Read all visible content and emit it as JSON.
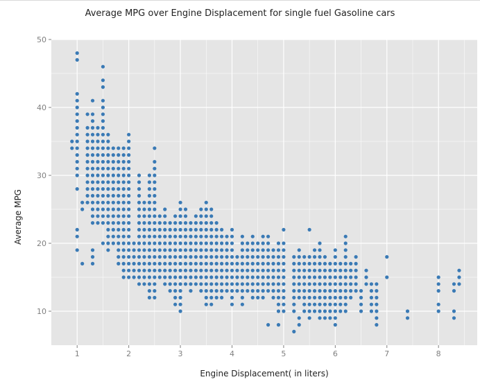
{
  "chart_data": {
    "type": "scatter",
    "title": "Average MPG over Engine Displacement for single fuel Gasoline cars",
    "xlabel": "Engine Displacement( in liters)",
    "ylabel": "Average MPG",
    "xlim": [
      0.5,
      8.75
    ],
    "ylim": [
      5,
      50
    ],
    "x_ticks": [
      1,
      2,
      3,
      4,
      5,
      6,
      7,
      8
    ],
    "y_ticks": [
      10,
      20,
      30,
      40,
      50
    ],
    "grid": true,
    "legend": "none",
    "colors": {
      "point": "#3a7ab5",
      "panel": "#e5e5e5",
      "grid": "#ffffff",
      "tick_label": "#7f7f7f"
    },
    "series": [
      {
        "points": [
          {
            "x": 0.9,
            "y": [
              34,
              35
            ]
          },
          {
            "x": 1.0,
            "y": [
              19,
              21,
              22,
              28,
              30,
              31,
              32,
              33,
              34,
              35,
              36,
              37,
              38,
              39,
              40,
              41,
              42,
              47,
              48
            ]
          },
          {
            "x": 1.1,
            "y": [
              17,
              25,
              26
            ]
          },
          {
            "x": 1.2,
            "y": [
              26,
              27,
              28,
              29,
              30,
              31,
              32,
              33,
              34,
              35,
              36,
              37,
              39
            ]
          },
          {
            "x": 1.3,
            "y": [
              17,
              18,
              19,
              23,
              24,
              25,
              26,
              27,
              28,
              29,
              30,
              31,
              32,
              33,
              34,
              35,
              36,
              37,
              38,
              39,
              41
            ]
          },
          {
            "x": 1.4,
            "y": [
              23,
              24,
              25,
              26,
              27,
              28,
              29,
              30,
              31,
              32,
              33,
              34,
              35,
              36,
              37
            ]
          },
          {
            "x": 1.5,
            "y": [
              20,
              23,
              24,
              25,
              26,
              27,
              28,
              29,
              30,
              31,
              32,
              33,
              34,
              35,
              36,
              37,
              38,
              39,
              40,
              41,
              43,
              44,
              46
            ]
          },
          {
            "x": 1.6,
            "y": [
              19,
              20,
              21,
              22,
              23,
              24,
              25,
              26,
              27,
              28,
              29,
              30,
              31,
              32,
              33,
              34,
              35,
              36
            ]
          },
          {
            "x": 1.7,
            "y": [
              20,
              21,
              22,
              23,
              24,
              25,
              26,
              27,
              28,
              29,
              30,
              31,
              32,
              33,
              34
            ]
          },
          {
            "x": 1.8,
            "y": [
              17,
              18,
              19,
              20,
              21,
              22,
              23,
              24,
              25,
              26,
              27,
              28,
              29,
              30,
              31,
              32,
              33,
              34
            ]
          },
          {
            "x": 1.9,
            "y": [
              15,
              16,
              17,
              18,
              19,
              20,
              21,
              22,
              23,
              24,
              25,
              26,
              27,
              28,
              29,
              30,
              31,
              32,
              33,
              34
            ]
          },
          {
            "x": 2.0,
            "y": [
              15,
              16,
              17,
              18,
              19,
              20,
              21,
              22,
              23,
              24,
              25,
              26,
              27,
              28,
              29,
              30,
              31,
              32,
              33,
              34,
              35,
              36
            ]
          },
          {
            "x": 2.1,
            "y": [
              15,
              16,
              17,
              18,
              19,
              20
            ]
          },
          {
            "x": 2.2,
            "y": [
              14,
              15,
              16,
              17,
              18,
              19,
              20,
              21,
              22,
              23,
              24,
              25,
              26,
              27,
              28,
              29,
              30
            ]
          },
          {
            "x": 2.3,
            "y": [
              14,
              15,
              16,
              17,
              18,
              19,
              20,
              21,
              22,
              23,
              24,
              25,
              26
            ]
          },
          {
            "x": 2.4,
            "y": [
              12,
              13,
              14,
              15,
              16,
              17,
              18,
              19,
              20,
              21,
              22,
              23,
              24,
              25,
              26,
              27,
              28,
              29,
              30
            ]
          },
          {
            "x": 2.5,
            "y": [
              12,
              13,
              14,
              15,
              16,
              17,
              18,
              19,
              20,
              21,
              22,
              23,
              24,
              25,
              26,
              27,
              28,
              29,
              30,
              31,
              32,
              34
            ]
          },
          {
            "x": 2.6,
            "y": [
              15,
              16,
              17,
              18,
              19,
              20,
              21,
              22,
              23,
              24
            ]
          },
          {
            "x": 2.7,
            "y": [
              14,
              15,
              16,
              17,
              18,
              19,
              20,
              21,
              22,
              23,
              24,
              25
            ]
          },
          {
            "x": 2.8,
            "y": [
              13,
              14,
              15,
              16,
              17,
              18,
              19,
              20,
              21,
              22,
              23
            ]
          },
          {
            "x": 2.9,
            "y": [
              11,
              12,
              13,
              14,
              15,
              16,
              17,
              18,
              19,
              20,
              21,
              22,
              23,
              24
            ]
          },
          {
            "x": 3.0,
            "y": [
              10,
              11,
              12,
              13,
              14,
              15,
              16,
              17,
              18,
              19,
              20,
              21,
              22,
              23,
              24,
              25,
              26
            ]
          },
          {
            "x": 3.1,
            "y": [
              14,
              15,
              16,
              17,
              18,
              19,
              20,
              21,
              22,
              23,
              24,
              25
            ]
          },
          {
            "x": 3.2,
            "y": [
              13,
              14,
              15,
              16,
              17,
              18,
              19,
              20,
              21,
              22,
              23
            ]
          },
          {
            "x": 3.3,
            "y": [
              14,
              15,
              16,
              17,
              18,
              19,
              20,
              21,
              22,
              23,
              24
            ]
          },
          {
            "x": 3.4,
            "y": [
              13,
              14,
              15,
              16,
              17,
              18,
              19,
              20,
              21,
              22,
              23,
              24,
              25
            ]
          },
          {
            "x": 3.5,
            "y": [
              11,
              12,
              13,
              14,
              15,
              16,
              17,
              18,
              19,
              20,
              21,
              22,
              23,
              24,
              25,
              26
            ]
          },
          {
            "x": 3.6,
            "y": [
              11,
              12,
              13,
              14,
              15,
              16,
              17,
              18,
              19,
              20,
              21,
              22,
              23,
              24,
              25
            ]
          },
          {
            "x": 3.7,
            "y": [
              12,
              13,
              14,
              15,
              16,
              17,
              18,
              19,
              20,
              21,
              22,
              23
            ]
          },
          {
            "x": 3.8,
            "y": [
              12,
              13,
              14,
              15,
              16,
              17,
              18,
              19,
              20,
              21,
              22
            ]
          },
          {
            "x": 3.9,
            "y": [
              13,
              14,
              15,
              16,
              17,
              18,
              19,
              20,
              21
            ]
          },
          {
            "x": 4.0,
            "y": [
              11,
              12,
              13,
              14,
              15,
              16,
              17,
              18,
              19,
              20,
              21,
              22
            ]
          },
          {
            "x": 4.1,
            "y": [
              13,
              14,
              15,
              16,
              17,
              18
            ]
          },
          {
            "x": 4.2,
            "y": [
              11,
              12,
              13,
              14,
              15,
              16,
              17,
              18,
              19,
              20,
              21
            ]
          },
          {
            "x": 4.3,
            "y": [
              13,
              14,
              15,
              16,
              17,
              18,
              19,
              20
            ]
          },
          {
            "x": 4.4,
            "y": [
              12,
              13,
              14,
              15,
              16,
              17,
              18,
              19,
              20,
              21
            ]
          },
          {
            "x": 4.5,
            "y": [
              12,
              13,
              14,
              15,
              16,
              17,
              18,
              19,
              20
            ]
          },
          {
            "x": 4.6,
            "y": [
              12,
              13,
              14,
              15,
              16,
              17,
              18,
              19,
              20,
              21
            ]
          },
          {
            "x": 4.7,
            "y": [
              8,
              13,
              14,
              15,
              16,
              17,
              18,
              19,
              20,
              21
            ]
          },
          {
            "x": 4.8,
            "y": [
              12,
              13,
              14,
              15,
              16,
              17,
              18,
              19
            ]
          },
          {
            "x": 4.9,
            "y": [
              8,
              10,
              11,
              12,
              13,
              14,
              15,
              16,
              17,
              18,
              19,
              20
            ]
          },
          {
            "x": 5.0,
            "y": [
              10,
              11,
              12,
              13,
              14,
              15,
              16,
              17,
              18,
              19,
              20,
              22
            ]
          },
          {
            "x": 5.2,
            "y": [
              7,
              10,
              11,
              12,
              13,
              14,
              15,
              16,
              17,
              18
            ]
          },
          {
            "x": 5.3,
            "y": [
              8,
              9,
              12,
              13,
              14,
              15,
              16,
              17,
              18,
              19
            ]
          },
          {
            "x": 5.4,
            "y": [
              10,
              11,
              12,
              13,
              14,
              15,
              16,
              17,
              18
            ]
          },
          {
            "x": 5.5,
            "y": [
              9,
              10,
              11,
              12,
              13,
              14,
              15,
              16,
              17,
              18,
              22
            ]
          },
          {
            "x": 5.6,
            "y": [
              10,
              11,
              12,
              13,
              14,
              15,
              16,
              17,
              18,
              19
            ]
          },
          {
            "x": 5.7,
            "y": [
              9,
              10,
              11,
              12,
              13,
              14,
              15,
              16,
              17,
              18,
              19,
              20
            ]
          },
          {
            "x": 5.8,
            "y": [
              9,
              10,
              11,
              12,
              13,
              14,
              15,
              16,
              17,
              18
            ]
          },
          {
            "x": 5.9,
            "y": [
              9,
              10,
              11,
              12,
              13,
              14,
              15,
              16,
              17
            ]
          },
          {
            "x": 6.0,
            "y": [
              8,
              9,
              10,
              11,
              12,
              13,
              14,
              15,
              16,
              17,
              18,
              19
            ]
          },
          {
            "x": 6.1,
            "y": [
              10,
              11,
              12,
              13,
              14,
              15,
              16,
              17
            ]
          },
          {
            "x": 6.2,
            "y": [
              10,
              11,
              12,
              13,
              14,
              15,
              16,
              17,
              18,
              19,
              20,
              21
            ]
          },
          {
            "x": 6.3,
            "y": [
              12,
              13,
              14,
              15,
              16,
              17
            ]
          },
          {
            "x": 6.4,
            "y": [
              13,
              14,
              15,
              16,
              17,
              18
            ]
          },
          {
            "x": 6.5,
            "y": [
              10,
              11,
              12,
              13
            ]
          },
          {
            "x": 6.6,
            "y": [
              14,
              15,
              16
            ]
          },
          {
            "x": 6.7,
            "y": [
              10,
              11,
              12,
              13,
              14
            ]
          },
          {
            "x": 6.8,
            "y": [
              8,
              9,
              10,
              11,
              12,
              13,
              14
            ]
          },
          {
            "x": 7.0,
            "y": [
              15,
              18
            ]
          },
          {
            "x": 7.4,
            "y": [
              9,
              10
            ]
          },
          {
            "x": 8.0,
            "y": [
              10,
              11,
              13,
              14,
              15
            ]
          },
          {
            "x": 8.3,
            "y": [
              9,
              10,
              13,
              14
            ]
          },
          {
            "x": 8.4,
            "y": [
              14,
              15,
              16
            ]
          }
        ]
      }
    ]
  }
}
